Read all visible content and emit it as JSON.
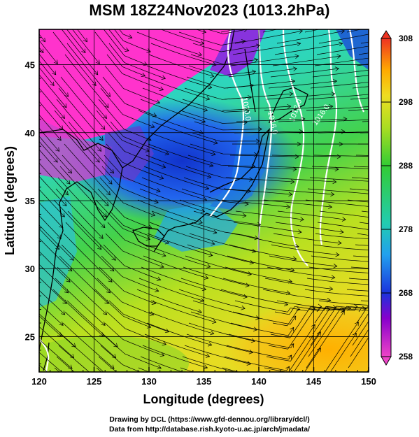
{
  "title": "MSM 18Z24Nov2023 (1013.2hPa)",
  "credits": {
    "line1": "Drawing by DCL (https://www.gfd-dennou.org/library/dcl/)",
    "line2": "Data from http://database.rish.kyoto-u.ac.jp/arch/jmadata/"
  },
  "chart_data": {
    "type": "heatmap",
    "title": "MSM 18Z24Nov2023 (1013.2hPa)",
    "xlabel": "Longitude (degrees)",
    "ylabel": "Latitude  (degrees)",
    "xlim": [
      120,
      150
    ],
    "ylim": [
      22.4,
      47.6
    ],
    "xticks": [
      120,
      125,
      130,
      135,
      140,
      145,
      150
    ],
    "yticks": [
      25,
      30,
      35,
      40,
      45
    ],
    "grid": true,
    "colorbar": {
      "min": 258,
      "max": 308,
      "ticks": [
        258,
        268,
        278,
        288,
        298,
        308
      ],
      "colors": [
        "#e040c0",
        "#8800cc",
        "#2244ee",
        "#22aaee",
        "#22ccaa",
        "#33cc33",
        "#aadd22",
        "#eedd22",
        "#ffaa00",
        "#ff6622",
        "#ee2222"
      ]
    },
    "contour_labels": [
      "1020.0",
      "1016.0",
      "1012.0",
      "1016.0"
    ],
    "overlays": [
      "streamlines (wind)",
      "sea-level pressure contours (white)",
      "coastlines"
    ]
  }
}
